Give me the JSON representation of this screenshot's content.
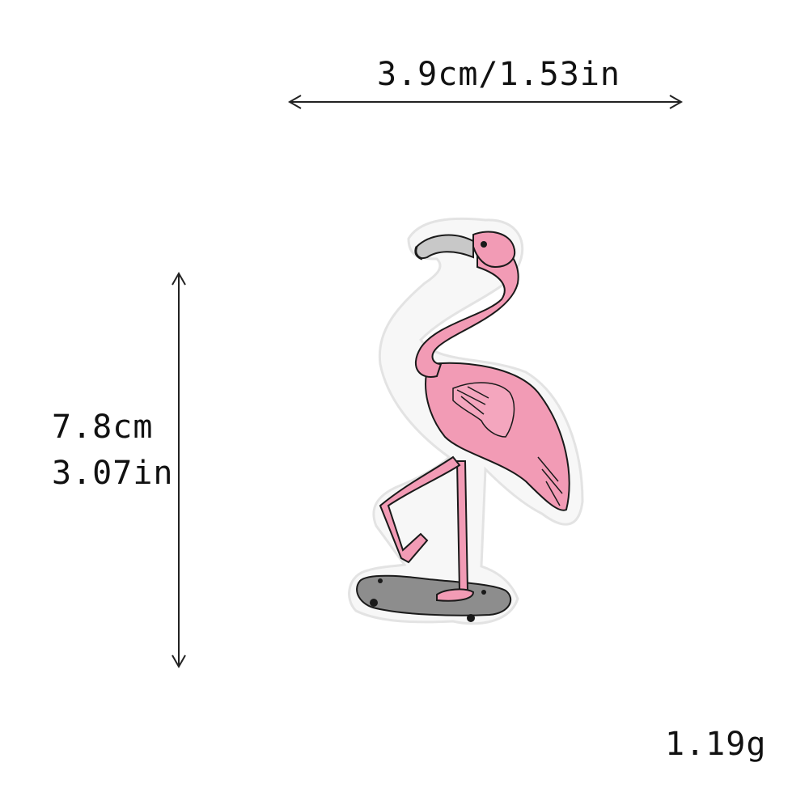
{
  "product": {
    "width_label": "3.9cm/1.53in",
    "height_label_cm": "7.8cm",
    "height_label_in": "3.07in",
    "weight_label": "1.19g"
  },
  "colors": {
    "flamingo_pink": "#f29bb5",
    "outline": "#1a1a1a",
    "skateboard_grey": "#8d8d8d",
    "patch_border": "#f5f5f5"
  },
  "image": {
    "subject": "flamingo-on-skateboard-patch"
  }
}
